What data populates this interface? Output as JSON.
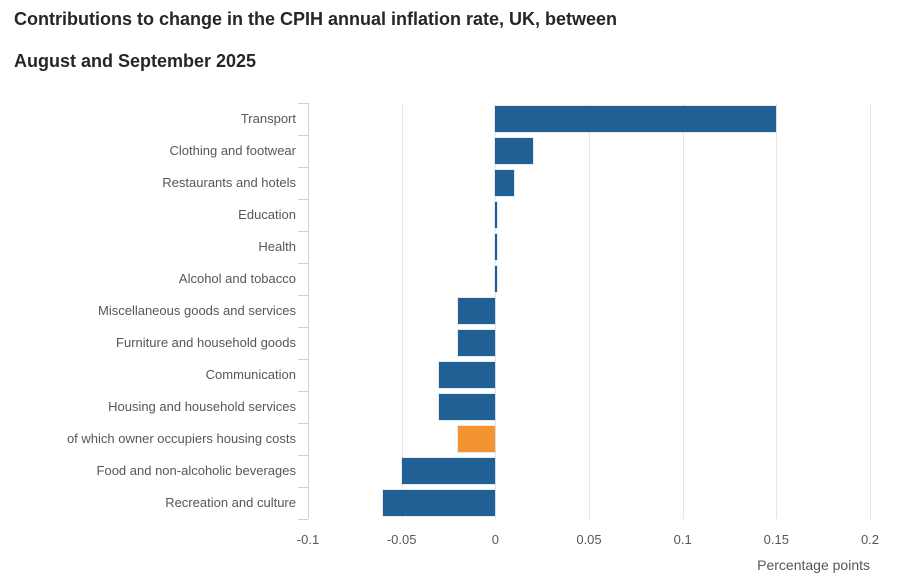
{
  "title": {
    "line1": "Contributions to change in the CPIH annual inflation rate, UK, between",
    "line2": "August and September 2025"
  },
  "chart_data": {
    "type": "bar",
    "orientation": "horizontal",
    "title": "Contributions to change in the CPIH annual inflation rate, UK, between August and September 2025",
    "xlabel": "Percentage points",
    "ylabel": "",
    "xlim": [
      -0.1,
      0.2
    ],
    "grid": true,
    "legend": false,
    "categories": [
      "Transport",
      "Clothing and footwear",
      "Restaurants and hotels",
      "Education",
      "Health",
      "Alcohol and tobacco",
      "Miscellaneous goods and services",
      "Furniture and household goods",
      "Communication",
      "Housing and household services",
      "of which owner occupiers housing costs",
      "Food and non-alcoholic beverages",
      "Recreation and culture"
    ],
    "values": [
      0.15,
      0.02,
      0.01,
      0.001,
      0.001,
      0.001,
      -0.02,
      -0.02,
      -0.03,
      -0.03,
      -0.02,
      -0.05,
      -0.06
    ],
    "x_ticks": [
      -0.1,
      -0.05,
      0,
      0.05,
      0.1,
      0.15,
      0.2
    ],
    "x_tick_labels": [
      "-0.1",
      "-0.05",
      "0",
      "0.05",
      "0.1",
      "0.15",
      "0.2"
    ],
    "highlight_index": 10,
    "colors": {
      "bar": "#206095",
      "highlight": "#f39431",
      "gridline": "#e6e6e6",
      "axis": "#c9cfdd",
      "text": "#55575b",
      "title_text": "#262626"
    }
  }
}
